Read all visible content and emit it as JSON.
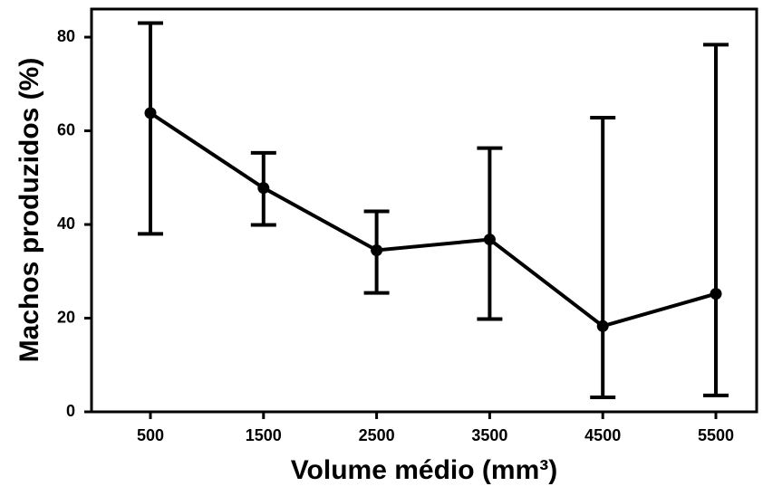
{
  "chart_data": {
    "type": "line",
    "x_label": "Volume médio (mm³)",
    "y_label": "Machos produzidos (%)",
    "categories": [
      "500",
      "1500",
      "2500",
      "3500",
      "4500",
      "5500"
    ],
    "values": [
      63.8,
      47.8,
      34.5,
      36.8,
      18.3,
      25.2
    ],
    "lower": [
      38.0,
      39.9,
      25.4,
      19.8,
      3.1,
      3.5
    ],
    "upper": [
      83.0,
      55.3,
      42.8,
      56.3,
      62.8,
      78.4
    ],
    "color": "#000000",
    "ylim": [
      0,
      86
    ],
    "yticks": [
      0,
      20,
      40,
      60,
      80
    ],
    "grid": false
  }
}
